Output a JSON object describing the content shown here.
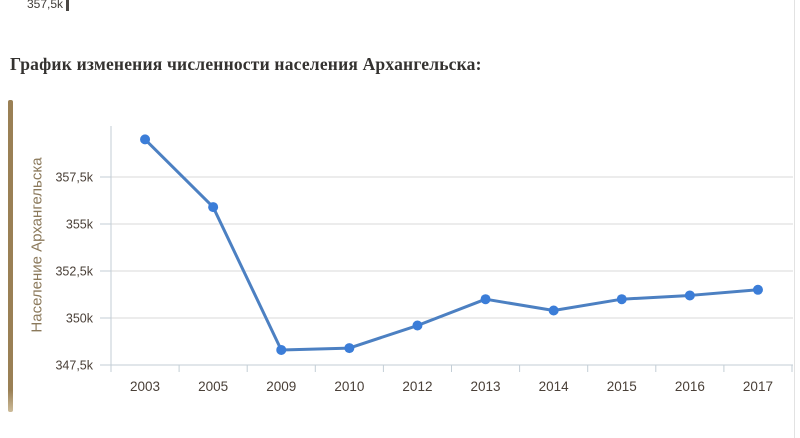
{
  "page": {
    "title": "График изменения численности населения Архангельска:",
    "top_left_fragment": "357,5k"
  },
  "chart_data": {
    "type": "line",
    "title": "",
    "xlabel": "",
    "ylabel": "Население Архангельска",
    "categories": [
      "2003",
      "2005",
      "2009",
      "2010",
      "2012",
      "2013",
      "2014",
      "2015",
      "2016",
      "2017"
    ],
    "series": [
      {
        "name": "Население Архангельска",
        "values_thousands": [
          359.5,
          355.9,
          348.3,
          348.4,
          349.6,
          351.0,
          350.4,
          351.0,
          351.2,
          351.5
        ]
      }
    ],
    "value_suffix": "k",
    "ytick_labels": [
      "357,5k",
      "355k",
      "352,5k",
      "350k",
      "347,5k"
    ],
    "ytick_values_thousands": [
      357.5,
      355,
      352.5,
      350,
      347.5
    ],
    "ylim_thousands": [
      347.5,
      360.2
    ],
    "grid": "horizontal",
    "legend": "none",
    "colors": {
      "line": "#4c80c2",
      "marker": "#3b7dd8",
      "grid": "#d9d9d9",
      "axis": "#c3ced6",
      "tick_label": "#4a4038",
      "axis_title": "#8b795b",
      "page_title": "#343230",
      "accent_bar": "#9a8055",
      "page_border": "#e2e2e2"
    }
  }
}
